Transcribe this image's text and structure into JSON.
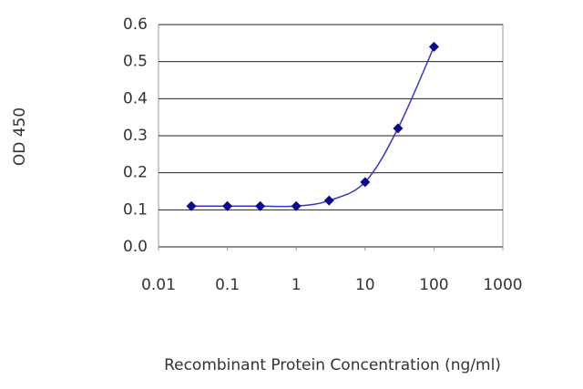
{
  "chart_data": {
    "type": "line",
    "x_label": "Recombinant Protein Concentration (ng/ml)",
    "y_label": "OD 450",
    "x": [
      0.03,
      0.1,
      0.3,
      1,
      3,
      10,
      30,
      100
    ],
    "series": [
      {
        "color": "#0a0a8c",
        "line_color": "#3535c8",
        "values": [
          0.11,
          0.11,
          0.11,
          0.11,
          0.125,
          0.175,
          0.32,
          0.54
        ]
      }
    ],
    "xscale": "log",
    "xlim": [
      0.01,
      1000
    ],
    "xticks": [
      0.01,
      0.1,
      1,
      10,
      100,
      1000
    ],
    "ylim": [
      0,
      0.6
    ],
    "yticks": [
      {
        "value": 0,
        "label": "0.0"
      },
      0.1,
      0.2,
      0.3,
      0.4,
      0.5,
      0.6
    ],
    "grid": true
  }
}
